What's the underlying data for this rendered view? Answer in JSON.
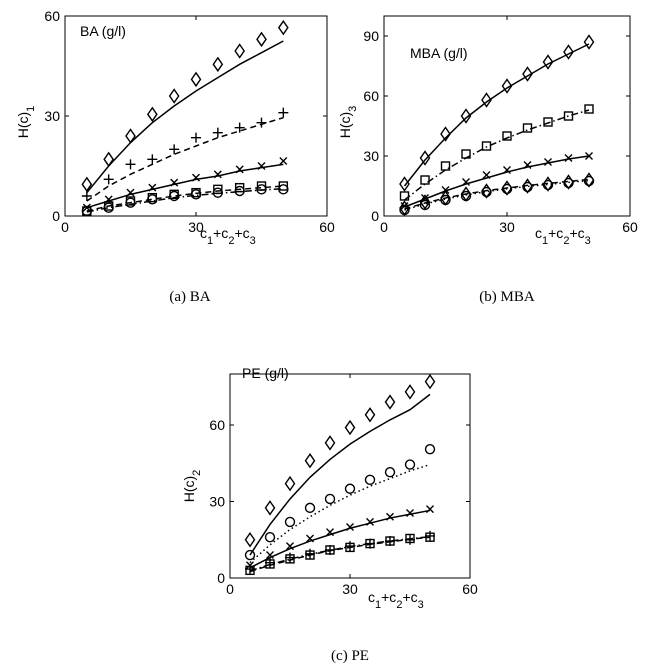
{
  "chart_data": [
    {
      "type": "scatter",
      "title": "BA (g/l)",
      "ylabel_main": "H(c)",
      "ylabel_sub": "1",
      "xlabel_parts": [
        "c",
        "1",
        "+c",
        "2",
        "+c",
        "3"
      ],
      "caption": "(a) BA",
      "xlim": [
        0,
        60
      ],
      "ylim": [
        0,
        60
      ],
      "xticks": [
        "0",
        "30",
        "60"
      ],
      "yticks": [
        "0",
        "30",
        "60"
      ],
      "x": [
        5,
        10,
        15,
        20,
        25,
        30,
        35,
        40,
        45,
        50
      ],
      "series": [
        {
          "marker": "diamond",
          "line": "solid",
          "values": [
            9.5,
            17,
            24,
            30.5,
            36,
            41,
            45.5,
            49.5,
            53,
            56.5
          ],
          "fit": [
            7,
            15,
            22,
            28,
            33,
            37.5,
            41.5,
            45.5,
            49,
            52.5
          ]
        },
        {
          "marker": "plus",
          "line": "dashed",
          "values": [
            6,
            11,
            15.5,
            17,
            20,
            23.5,
            25,
            26.5,
            28,
            31
          ],
          "fit": [
            4.5,
            9,
            12.5,
            15.5,
            18.5,
            21,
            23.5,
            25.5,
            27.5,
            29.5
          ]
        },
        {
          "marker": "cross",
          "line": "solid",
          "values": [
            2.5,
            5,
            7,
            8.5,
            10,
            11.5,
            12.5,
            14,
            15,
            16.5
          ],
          "fit": [
            2.5,
            4.5,
            6.5,
            8,
            9.5,
            11,
            12,
            13.5,
            14.5,
            15.5
          ]
        },
        {
          "marker": "square",
          "line": "dashed",
          "values": [
            1.5,
            3,
            4.5,
            5.5,
            6.5,
            7,
            8,
            8.5,
            9,
            9
          ],
          "fit": [
            1.5,
            3,
            4,
            5,
            6,
            6.8,
            7.5,
            8,
            8.5,
            9
          ]
        },
        {
          "marker": "circle",
          "line": "dashdot",
          "values": [
            1.5,
            2.5,
            4,
            5,
            6,
            6.5,
            7,
            7.5,
            8,
            8
          ],
          "fit": [
            1.2,
            2.5,
            3.5,
            4.5,
            5.5,
            6.2,
            6.8,
            7.3,
            7.8,
            8.2
          ]
        }
      ]
    },
    {
      "type": "scatter",
      "title": "MBA (g/l)",
      "ylabel_main": "H(c)",
      "ylabel_sub": "3",
      "xlabel_parts": [
        "c",
        "1",
        "+c",
        "2",
        "+c",
        "3"
      ],
      "caption": "(b) MBA",
      "xlim": [
        0,
        60
      ],
      "ylim": [
        0,
        100
      ],
      "xticks": [
        "0",
        "30",
        "60"
      ],
      "yticks": [
        "0",
        "30",
        "60",
        "90"
      ],
      "x": [
        5,
        10,
        15,
        20,
        25,
        30,
        35,
        40,
        45,
        50
      ],
      "series": [
        {
          "marker": "diamond",
          "line": "solid",
          "values": [
            16,
            29,
            41,
            50,
            58,
            65,
            71,
            77,
            82,
            87
          ],
          "fit": [
            15,
            28,
            39,
            49,
            57,
            64,
            70,
            76,
            81,
            86
          ]
        },
        {
          "marker": "square",
          "line": "dashdot",
          "values": [
            10,
            18,
            25,
            31,
            35,
            40,
            44,
            47,
            50,
            53.5
          ],
          "fit": [
            8,
            16,
            23,
            29,
            34.5,
            39,
            43,
            46.5,
            50,
            53
          ]
        },
        {
          "marker": "cross",
          "line": "solid",
          "values": [
            5,
            9,
            13,
            17,
            20.5,
            23,
            25.5,
            27,
            29,
            30
          ],
          "fit": [
            4.5,
            8.5,
            12.5,
            16,
            19,
            22,
            24.5,
            26.5,
            28.5,
            30
          ]
        },
        {
          "marker": "diamond",
          "line": "dashed",
          "values": [
            4,
            7,
            9,
            11,
            12.5,
            14,
            15,
            16,
            17,
            18
          ],
          "fit": [
            3.5,
            6.5,
            9,
            11,
            12.7,
            14,
            15.3,
            16.3,
            17.3,
            18.3
          ]
        },
        {
          "marker": "circle",
          "line": "dotted",
          "values": [
            3,
            5.5,
            8,
            10,
            12,
            13.5,
            14.5,
            15.5,
            16.5,
            17.5
          ],
          "fit": [
            3,
            6,
            8.5,
            10.5,
            12.2,
            13.6,
            14.8,
            15.8,
            16.8,
            17.7
          ]
        }
      ]
    },
    {
      "type": "scatter",
      "title": "PE (g/l)",
      "ylabel_main": "H(c)",
      "ylabel_sub": "2",
      "xlabel_parts": [
        "c",
        "1",
        "+c",
        "2",
        "+c",
        "3"
      ],
      "caption": "(c) PE",
      "xlim": [
        0,
        60
      ],
      "ylim": [
        0,
        80
      ],
      "xticks": [
        "0",
        "30",
        "60"
      ],
      "yticks": [
        "0",
        "30",
        "60"
      ],
      "x": [
        5,
        10,
        15,
        20,
        25,
        30,
        35,
        40,
        45,
        50
      ],
      "series": [
        {
          "marker": "diamond",
          "line": "solid",
          "values": [
            15,
            27.5,
            37,
            46,
            53,
            59,
            64,
            69,
            73,
            77
          ],
          "fit": [
            9,
            21,
            31,
            39.5,
            46.5,
            52.5,
            57.5,
            62,
            66,
            72
          ]
        },
        {
          "marker": "circle",
          "line": "dotted",
          "values": [
            9,
            16,
            22,
            27.5,
            31,
            35,
            38.5,
            41.5,
            44.5,
            50.5
          ],
          "fit": [
            6,
            13,
            19,
            24,
            28.5,
            32.5,
            36,
            39,
            42,
            44.5
          ]
        },
        {
          "marker": "cross",
          "line": "solid",
          "values": [
            5,
            9,
            12.5,
            15.5,
            18,
            20,
            22,
            24,
            25.5,
            27
          ],
          "fit": [
            4,
            8,
            11.5,
            14.5,
            17,
            19.5,
            21.5,
            23.5,
            25,
            26.5
          ]
        },
        {
          "marker": "square",
          "line": "dashed",
          "values": [
            3,
            5.5,
            7.5,
            9,
            11,
            12,
            13.5,
            14.5,
            15.5,
            16
          ],
          "fit": [
            2.5,
            5,
            7,
            9,
            10.7,
            12,
            13.2,
            14.2,
            15.2,
            16
          ]
        },
        {
          "marker": "plus",
          "line": "dashdot",
          "values": [
            3.5,
            6,
            8,
            9.5,
            11,
            12.5,
            13.5,
            14.5,
            15,
            16.5
          ],
          "fit": [
            2.8,
            5.3,
            7.4,
            9.3,
            10.9,
            12.3,
            13.5,
            14.5,
            15.4,
            16.2
          ]
        }
      ]
    }
  ]
}
